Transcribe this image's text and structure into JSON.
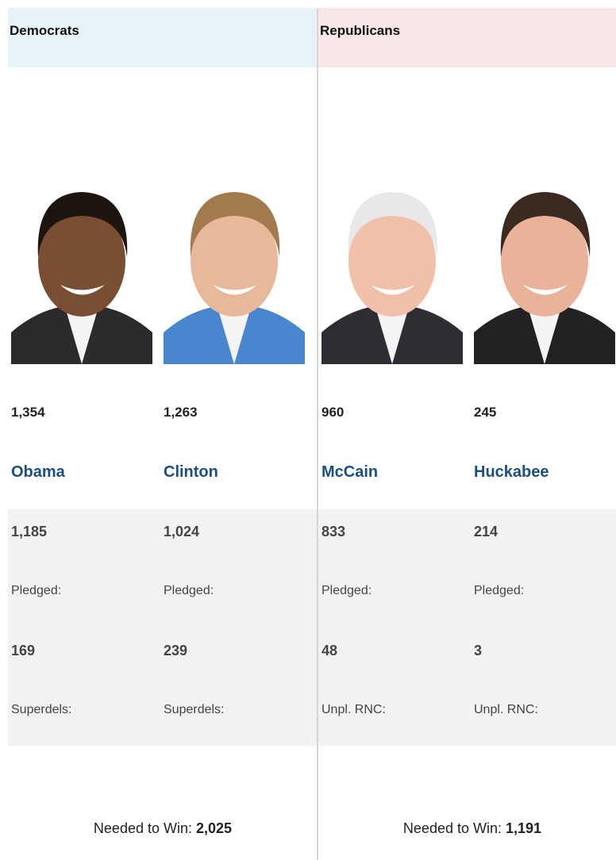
{
  "parties": [
    {
      "name": "Democrats",
      "needed_label": "Needed to Win:",
      "needed": "2,025",
      "candidates": [
        {
          "name": "Obama",
          "total": "1,354",
          "pledged": "1,185",
          "pledged_label": "Pledged:",
          "other": "169",
          "other_label": "Superdels:"
        },
        {
          "name": "Clinton",
          "total": "1,263",
          "pledged": "1,024",
          "pledged_label": "Pledged:",
          "other": "239",
          "other_label": "Superdels:"
        }
      ]
    },
    {
      "name": "Republicans",
      "needed_label": "Needed to Win:",
      "needed": "1,191",
      "candidates": [
        {
          "name": "McCain",
          "total": "960",
          "pledged": "833",
          "pledged_label": "Pledged:",
          "other": "48",
          "other_label": "Unpl. RNC:"
        },
        {
          "name": "Huckabee",
          "total": "245",
          "pledged": "214",
          "pledged_label": "Pledged:",
          "other": "3",
          "other_label": "Unpl. RNC:"
        }
      ]
    }
  ]
}
